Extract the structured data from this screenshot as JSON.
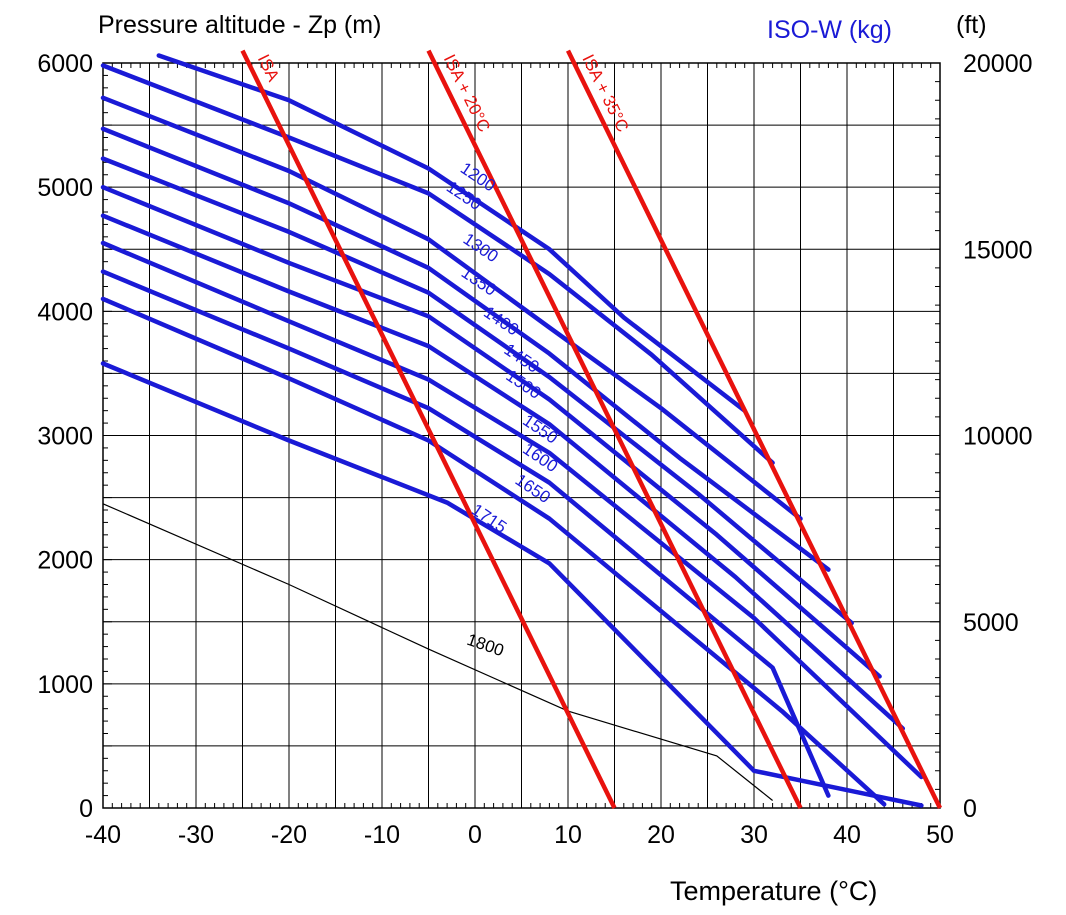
{
  "chart_data": {
    "type": "line",
    "title": "",
    "ylabel_left": "Pressure altitude - Zp (m)",
    "ylabel_right": "(ft)",
    "legend_title": "ISO-W (kg)",
    "xlabel": "Temperature (°C)",
    "xlim": [
      -40,
      50
    ],
    "ylim": [
      0,
      6000
    ],
    "ylim_ft": [
      0,
      20000
    ],
    "grid": true,
    "x_ticks": [
      "-40",
      "-30",
      "-20",
      "-10",
      "0",
      "10",
      "20",
      "30",
      "40",
      "50"
    ],
    "y_ticks": [
      "0",
      "1000",
      "2000",
      "3000",
      "4000",
      "5000",
      "6000"
    ],
    "y_ticks_ft": [
      "0",
      "5000",
      "10000",
      "15000",
      "20000"
    ],
    "colors": {
      "weight": "#1a1ad6",
      "isa": "#e8120e",
      "limit": "#000000",
      "grid": "#000000"
    },
    "isa_lines": [
      {
        "label": "ISA",
        "points": [
          [
            -25,
            6100
          ],
          [
            15,
            0
          ]
        ]
      },
      {
        "label": "ISA + 20°C",
        "points": [
          [
            -5,
            6100
          ],
          [
            35,
            0
          ]
        ]
      },
      {
        "label": "ISA + 35°C",
        "points": [
          [
            10,
            6100
          ],
          [
            50,
            0
          ]
        ]
      }
    ],
    "weight_series": [
      {
        "name": "1200",
        "points": [
          [
            -34,
            6060
          ],
          [
            -20,
            5700
          ],
          [
            -5,
            5150
          ],
          [
            8,
            4500
          ],
          [
            16,
            3950
          ],
          [
            29,
            3200
          ]
        ]
      },
      {
        "name": "1250",
        "points": [
          [
            -40,
            5980
          ],
          [
            -20,
            5400
          ],
          [
            -5,
            4950
          ],
          [
            8,
            4300
          ],
          [
            19,
            3650
          ],
          [
            32,
            2780
          ]
        ]
      },
      {
        "name": "1300",
        "points": [
          [
            -40,
            5720
          ],
          [
            -20,
            5130
          ],
          [
            -5,
            4580
          ],
          [
            8,
            3870
          ],
          [
            20,
            3220
          ],
          [
            35,
            2330
          ]
        ]
      },
      {
        "name": "1350",
        "points": [
          [
            -40,
            5470
          ],
          [
            -20,
            4870
          ],
          [
            -5,
            4350
          ],
          [
            8,
            3660
          ],
          [
            22,
            2820
          ],
          [
            38,
            1920
          ]
        ]
      },
      {
        "name": "1400",
        "points": [
          [
            -40,
            5230
          ],
          [
            -20,
            4640
          ],
          [
            -5,
            4150
          ],
          [
            8,
            3470
          ],
          [
            24,
            2530
          ],
          [
            40.5,
            1490
          ]
        ]
      },
      {
        "name": "1450",
        "points": [
          [
            -40,
            5000
          ],
          [
            -20,
            4390
          ],
          [
            -5,
            3960
          ],
          [
            8,
            3290
          ],
          [
            26,
            2200
          ],
          [
            43.5,
            1060
          ]
        ]
      },
      {
        "name": "1500",
        "points": [
          [
            -40,
            4770
          ],
          [
            -20,
            4160
          ],
          [
            -5,
            3720
          ],
          [
            8,
            3090
          ],
          [
            28,
            1860
          ],
          [
            46,
            640
          ]
        ]
      },
      {
        "name": "1550",
        "points": [
          [
            -40,
            4550
          ],
          [
            -20,
            3920
          ],
          [
            -5,
            3450
          ],
          [
            8,
            2860
          ],
          [
            30,
            1530
          ],
          [
            48,
            250
          ]
        ]
      },
      {
        "name": "1600",
        "points": [
          [
            -40,
            4320
          ],
          [
            -20,
            3700
          ],
          [
            -5,
            3220
          ],
          [
            8,
            2620
          ],
          [
            32,
            1130
          ],
          [
            38,
            100
          ]
        ]
      },
      {
        "name": "1650",
        "points": [
          [
            -40,
            4100
          ],
          [
            -20,
            3460
          ],
          [
            -5,
            2960
          ],
          [
            8,
            2330
          ],
          [
            33,
            780
          ],
          [
            44,
            30
          ]
        ]
      },
      {
        "name": "1715",
        "points": [
          [
            -40,
            3580
          ],
          [
            -20,
            2960
          ],
          [
            -3,
            2460
          ],
          [
            8,
            1970
          ],
          [
            30,
            300
          ],
          [
            48,
            20
          ]
        ]
      }
    ],
    "limit_line": {
      "label": "1800",
      "points": [
        [
          -40,
          2450
        ],
        [
          -20,
          1800
        ],
        [
          -5,
          1280
        ],
        [
          10,
          780
        ],
        [
          26,
          420
        ],
        [
          32,
          60
        ]
      ]
    }
  }
}
